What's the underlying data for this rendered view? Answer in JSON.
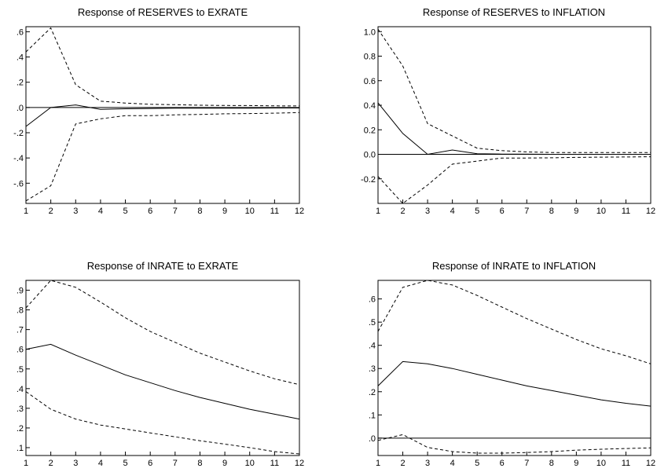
{
  "chart_data": [
    {
      "type": "line",
      "title": "Response of RESERVES to EXRATE",
      "x": [
        1,
        2,
        3,
        4,
        5,
        6,
        7,
        8,
        9,
        10,
        11,
        12
      ],
      "xticks": [
        "1",
        "2",
        "3",
        "4",
        "5",
        "6",
        "7",
        "8",
        "9",
        "10",
        "11",
        "12"
      ],
      "ylim": [
        -0.76,
        0.64
      ],
      "yticks": [
        {
          "v": 0.6,
          "label": ".6"
        },
        {
          "v": 0.4,
          "label": ".4"
        },
        {
          "v": 0.2,
          "label": ".2"
        },
        {
          "v": 0.0,
          "label": ".0"
        },
        {
          "v": -0.2,
          "label": "-.2"
        },
        {
          "v": -0.4,
          "label": "-.4"
        },
        {
          "v": -0.6,
          "label": "-.6"
        }
      ],
      "zero_line": true,
      "series": [
        {
          "style": "solid",
          "values": [
            -0.15,
            0.0,
            0.02,
            -0.015,
            -0.01,
            -0.008,
            -0.006,
            -0.005,
            -0.005,
            -0.005,
            -0.004,
            -0.004
          ]
        },
        {
          "style": "dashed",
          "values": [
            0.44,
            0.63,
            0.18,
            0.05,
            0.035,
            0.025,
            0.022,
            0.018,
            0.016,
            0.015,
            0.013,
            0.012
          ]
        },
        {
          "style": "dashed",
          "values": [
            -0.74,
            -0.62,
            -0.13,
            -0.09,
            -0.065,
            -0.065,
            -0.058,
            -0.055,
            -0.05,
            -0.048,
            -0.045,
            -0.04
          ]
        }
      ]
    },
    {
      "type": "line",
      "title": "Response of RESERVES to INFLATION",
      "x": [
        1,
        2,
        3,
        4,
        5,
        6,
        7,
        8,
        9,
        10,
        11,
        12
      ],
      "xticks": [
        "1",
        "2",
        "3",
        "4",
        "5",
        "6",
        "7",
        "8",
        "9",
        "10",
        "11",
        "12"
      ],
      "ylim": [
        -0.4,
        1.04
      ],
      "yticks": [
        {
          "v": 1.0,
          "label": "1.0"
        },
        {
          "v": 0.8,
          "label": "0.8"
        },
        {
          "v": 0.6,
          "label": "0.6"
        },
        {
          "v": 0.4,
          "label": "0.4"
        },
        {
          "v": 0.2,
          "label": "0.2"
        },
        {
          "v": 0.0,
          "label": "0.0"
        },
        {
          "v": -0.2,
          "label": "-0.2"
        }
      ],
      "zero_line": true,
      "series": [
        {
          "style": "solid",
          "values": [
            0.42,
            0.17,
            0.0,
            0.035,
            0.005,
            0.002,
            0.002,
            0.0,
            0.0,
            0.0,
            0.0,
            0.0
          ]
        },
        {
          "style": "dashed",
          "values": [
            1.02,
            0.72,
            0.25,
            0.15,
            0.05,
            0.03,
            0.02,
            0.015,
            0.015,
            0.015,
            0.015,
            0.015
          ]
        },
        {
          "style": "dashed",
          "values": [
            -0.18,
            -0.4,
            -0.25,
            -0.08,
            -0.055,
            -0.03,
            -0.03,
            -0.028,
            -0.025,
            -0.023,
            -0.022,
            -0.02
          ]
        }
      ]
    },
    {
      "type": "line",
      "title": "Response of INRATE to EXRATE",
      "x": [
        1,
        2,
        3,
        4,
        5,
        6,
        7,
        8,
        9,
        10,
        11,
        12
      ],
      "xticks": [
        "1",
        "2",
        "3",
        "4",
        "5",
        "6",
        "7",
        "8",
        "9",
        "10",
        "11",
        "12"
      ],
      "ylim": [
        0.06,
        0.95
      ],
      "yticks": [
        {
          "v": 0.9,
          "label": ".9"
        },
        {
          "v": 0.8,
          "label": ".8"
        },
        {
          "v": 0.7,
          "label": ".7"
        },
        {
          "v": 0.6,
          "label": ".6"
        },
        {
          "v": 0.5,
          "label": ".5"
        },
        {
          "v": 0.4,
          "label": ".4"
        },
        {
          "v": 0.3,
          "label": ".3"
        },
        {
          "v": 0.2,
          "label": ".2"
        },
        {
          "v": 0.1,
          "label": ".1"
        }
      ],
      "zero_line": false,
      "series": [
        {
          "style": "solid",
          "values": [
            0.6,
            0.625,
            0.57,
            0.52,
            0.47,
            0.43,
            0.39,
            0.355,
            0.325,
            0.295,
            0.27,
            0.245
          ]
        },
        {
          "style": "dashed",
          "values": [
            0.81,
            0.95,
            0.915,
            0.84,
            0.76,
            0.69,
            0.635,
            0.58,
            0.535,
            0.49,
            0.45,
            0.42
          ]
        },
        {
          "style": "dashed",
          "values": [
            0.385,
            0.295,
            0.245,
            0.215,
            0.195,
            0.175,
            0.155,
            0.135,
            0.118,
            0.1,
            0.08,
            0.068
          ]
        }
      ]
    },
    {
      "type": "line",
      "title": "Response of INRATE to INFLATION",
      "x": [
        1,
        2,
        3,
        4,
        5,
        6,
        7,
        8,
        9,
        10,
        11,
        12
      ],
      "xticks": [
        "1",
        "2",
        "3",
        "4",
        "5",
        "6",
        "7",
        "8",
        "9",
        "10",
        "11",
        "12"
      ],
      "ylim": [
        -0.075,
        0.68
      ],
      "yticks": [
        {
          "v": 0.6,
          "label": ".6"
        },
        {
          "v": 0.5,
          "label": ".5"
        },
        {
          "v": 0.4,
          "label": ".4"
        },
        {
          "v": 0.3,
          "label": ".3"
        },
        {
          "v": 0.2,
          "label": ".2"
        },
        {
          "v": 0.1,
          "label": ".1"
        },
        {
          "v": 0.0,
          "label": ".0"
        }
      ],
      "zero_line": true,
      "series": [
        {
          "style": "solid",
          "values": [
            0.225,
            0.33,
            0.32,
            0.3,
            0.275,
            0.25,
            0.225,
            0.205,
            0.185,
            0.165,
            0.15,
            0.138
          ]
        },
        {
          "style": "dashed",
          "values": [
            0.46,
            0.65,
            0.68,
            0.66,
            0.615,
            0.565,
            0.515,
            0.47,
            0.425,
            0.385,
            0.355,
            0.32
          ]
        },
        {
          "style": "dashed",
          "values": [
            -0.01,
            0.015,
            -0.04,
            -0.058,
            -0.065,
            -0.065,
            -0.062,
            -0.058,
            -0.052,
            -0.048,
            -0.045,
            -0.042
          ]
        }
      ]
    }
  ]
}
